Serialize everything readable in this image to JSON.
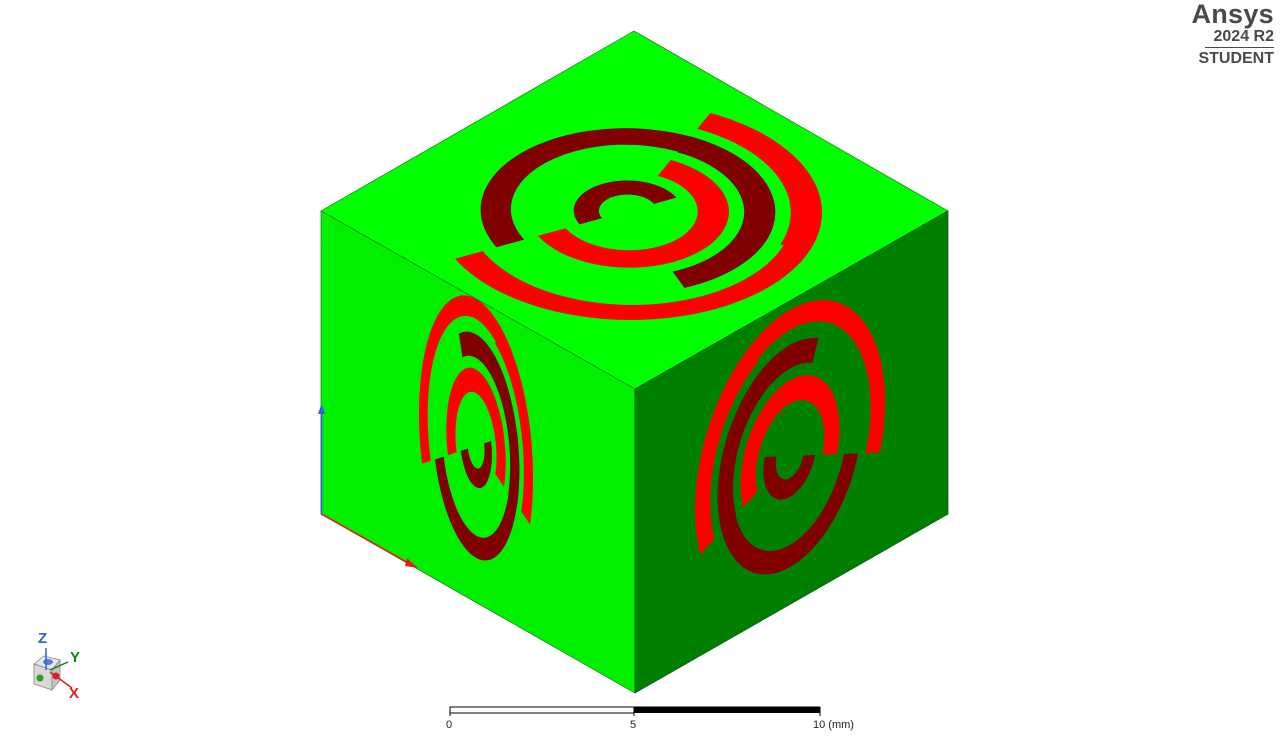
{
  "brand": {
    "name": "Ansys",
    "version": "2024 R2",
    "edition": "STUDENT"
  },
  "scale_bar": {
    "tick_0": "0",
    "tick_mid": "5",
    "tick_max": "10 (mm)"
  },
  "triad": {
    "z": "Z",
    "y": "Y",
    "x": "X"
  },
  "colors": {
    "top_face": "#00ff00",
    "left_face": "#00f000",
    "right_face": "#008000",
    "ring_red": "#ff0000",
    "ring_dark": "#800000",
    "axis_x": "#e02020",
    "axis_y": "#108010",
    "axis_z": "#3060d0"
  }
}
